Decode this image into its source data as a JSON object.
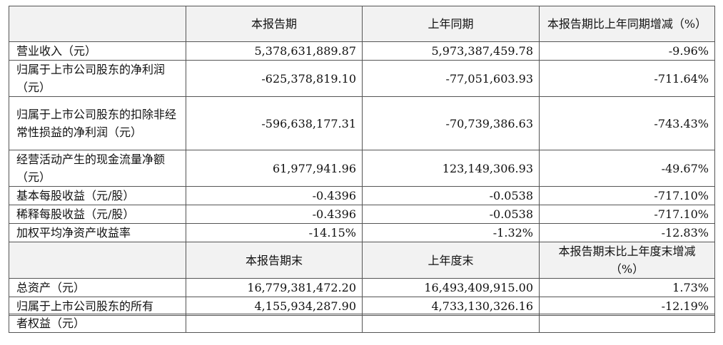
{
  "table": {
    "header": [
      "本报告期",
      "上年同期",
      "本报告期比上年同期增减（%）"
    ],
    "rows": [
      [
        "营业收入（元）",
        "5,378,631,889.87",
        "5,973,387,459.78",
        "-9.96%"
      ],
      [
        "归属于上市公司股东的净利润（元）",
        "-625,378,819.10",
        "-77,051,603.93",
        "-711.64%"
      ],
      [
        "归属于上市公司股东的扣除非经常性损益的净利润（元）",
        "-596,638,177.31",
        "-70,739,386.63",
        "-743.43%"
      ],
      [
        "经营活动产生的现金流量净额（元）",
        "61,977,941.96",
        "123,149,306.93",
        "-49.67%"
      ],
      [
        "基本每股收益（元/股）",
        "-0.4396",
        "-0.0538",
        "-717.10%"
      ],
      [
        "稀释每股收益（元/股）",
        "-0.4396",
        "-0.0538",
        "-717.10%"
      ],
      [
        "加权平均净资产收益率",
        "-14.15%",
        "-1.32%",
        "-12.83%"
      ]
    ],
    "header2": [
      "本报告期末",
      "上年度末",
      "本报告期末比上年度末增减（%）"
    ],
    "rows2": [
      [
        "总资产（元）",
        "16,779,381,472.20",
        "16,493,409,915.00",
        "1.73%"
      ],
      [
        "归属于上市公司股东的所有",
        "4,155,934,287.90",
        "4,733,130,326.16",
        "-12.19%"
      ]
    ],
    "continuation": "者权益（元）"
  }
}
